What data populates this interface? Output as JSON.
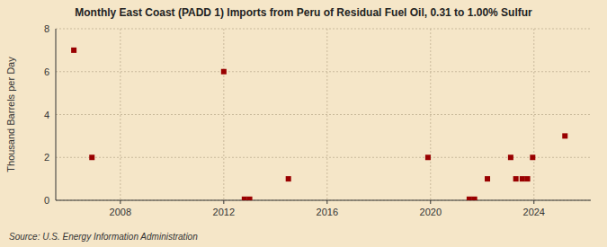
{
  "chart_data": {
    "type": "scatter",
    "title": "Monthly East Coast (PADD 1) Imports from Peru of Residual Fuel Oil, 0.31 to 1.00% Sulfur",
    "ylabel": "Thousand Barrels per Day",
    "source": "Source: U.S. Energy Information Administration",
    "color": "#990000",
    "marker": "square",
    "grid": true,
    "xlim": [
      2005.5,
      2026.2
    ],
    "xticks": [
      2008,
      2012,
      2016,
      2020,
      2024
    ],
    "ylim": [
      0,
      8
    ],
    "yticks": [
      0,
      2,
      4,
      6,
      8
    ],
    "x": [
      2006.2,
      2006.9,
      2012.0,
      2012.8,
      2013.0,
      2014.5,
      2019.9,
      2021.5,
      2021.7,
      2022.2,
      2023.1,
      2023.3,
      2023.55,
      2023.75,
      2023.95,
      2025.2
    ],
    "values": [
      7.0,
      2.0,
      6.0,
      0.05,
      0.05,
      1.0,
      2.0,
      0.05,
      0.05,
      1.0,
      2.0,
      1.0,
      1.0,
      1.0,
      2.0,
      3.0
    ]
  }
}
